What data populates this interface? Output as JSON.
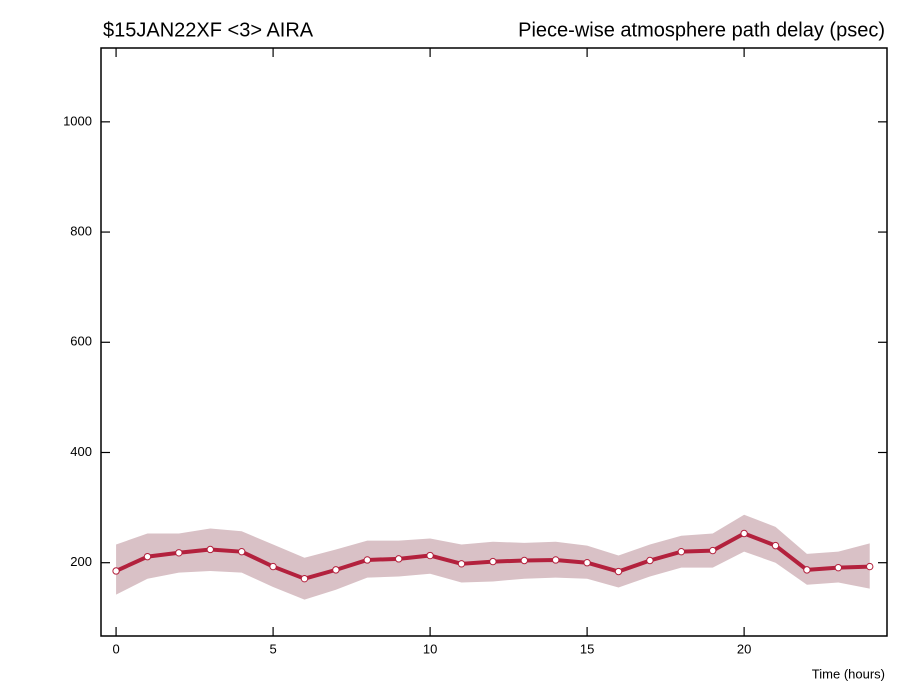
{
  "chart_data": {
    "type": "line",
    "title": "$15JAN22XF <3>  AIRA",
    "subtitle": "Piece-wise atmosphere path delay (psec)",
    "x_label": "Time (hours)",
    "x": [
      0,
      1,
      2,
      3,
      4,
      5,
      6,
      7,
      8,
      9,
      10,
      11,
      12,
      13,
      14,
      15,
      16,
      17,
      18,
      19,
      20,
      21,
      22,
      23,
      24
    ],
    "series": [
      {
        "color": "#b3213d",
        "band_color": "#d9c1c6",
        "values": [
          185,
          211,
          218,
          224,
          220,
          193,
          171,
          187,
          205,
          207,
          213,
          198,
          202,
          204,
          205,
          200,
          184,
          204,
          220,
          222,
          253,
          231,
          187,
          191,
          193
        ],
        "upper": [
          233,
          253,
          253,
          262,
          257,
          233,
          209,
          224,
          240,
          240,
          244,
          233,
          238,
          236,
          238,
          231,
          213,
          233,
          249,
          253,
          287,
          265,
          216,
          220,
          235
        ],
        "lower": [
          142,
          171,
          182,
          185,
          182,
          156,
          133,
          151,
          173,
          175,
          180,
          164,
          166,
          171,
          173,
          171,
          155,
          175,
          191,
          191,
          220,
          200,
          160,
          164,
          153
        ]
      }
    ],
    "xlim": [
      -0.48,
      24.55
    ],
    "xticks": [
      0,
      5,
      10,
      15,
      20
    ],
    "ylim": [
      67,
      1134
    ],
    "yticks": [
      200,
      400,
      600,
      800,
      1000
    ]
  }
}
